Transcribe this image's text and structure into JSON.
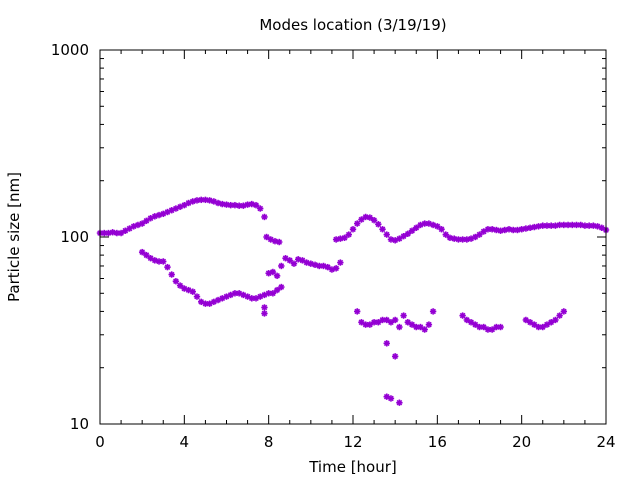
{
  "chart_data": {
    "type": "scatter",
    "title": "Modes location (3/19/19)",
    "xlabel": "Time [hour]",
    "ylabel": "Particle size [nm]",
    "xlim": [
      0,
      24
    ],
    "ylim": [
      10,
      1000
    ],
    "y_scale": "log",
    "grid": false,
    "legend": "none",
    "marker": "asterisk",
    "x_ticks": [
      0,
      4,
      8,
      12,
      16,
      20,
      24
    ],
    "y_ticks": [
      10,
      100,
      1000
    ],
    "x_tick_labels": [
      "0",
      "4",
      "8",
      "12",
      "16",
      "20",
      "24"
    ],
    "y_tick_labels": [
      "10",
      "100",
      "1000"
    ],
    "colors": {
      "series": "#9400d3",
      "axes": "#000000",
      "background": "#ffffff"
    },
    "series": [
      {
        "values": [
          [
            0.0,
            105
          ],
          [
            0.2,
            105
          ],
          [
            0.4,
            105
          ],
          [
            0.6,
            106
          ],
          [
            0.8,
            105
          ],
          [
            1.0,
            105
          ],
          [
            1.2,
            108
          ],
          [
            1.4,
            111
          ],
          [
            1.6,
            114
          ],
          [
            1.8,
            116
          ],
          [
            2.0,
            118
          ],
          [
            2.2,
            122
          ],
          [
            2.4,
            126
          ],
          [
            2.6,
            129
          ],
          [
            2.8,
            131
          ],
          [
            3.0,
            133
          ],
          [
            3.2,
            136
          ],
          [
            3.4,
            139
          ],
          [
            3.6,
            142
          ],
          [
            3.8,
            145
          ],
          [
            4.0,
            148
          ],
          [
            4.2,
            152
          ],
          [
            4.4,
            155
          ],
          [
            4.6,
            157
          ],
          [
            4.8,
            158
          ],
          [
            5.0,
            158
          ],
          [
            5.2,
            157
          ],
          [
            5.4,
            155
          ],
          [
            5.6,
            152
          ],
          [
            5.8,
            150
          ],
          [
            6.0,
            149
          ],
          [
            6.2,
            148
          ],
          [
            6.4,
            148
          ],
          [
            6.6,
            147
          ],
          [
            6.8,
            147
          ],
          [
            7.0,
            149
          ],
          [
            7.2,
            150
          ],
          [
            7.4,
            148
          ],
          [
            7.6,
            142
          ],
          [
            7.8,
            128
          ],
          [
            7.9,
            100
          ],
          [
            8.1,
            97
          ],
          [
            8.3,
            95
          ],
          [
            8.5,
            94
          ],
          [
            11.2,
            97
          ],
          [
            11.4,
            98
          ],
          [
            11.6,
            99
          ],
          [
            11.8,
            103
          ],
          [
            12.0,
            110
          ],
          [
            12.2,
            118
          ],
          [
            12.4,
            124
          ],
          [
            12.6,
            128
          ],
          [
            12.8,
            127
          ],
          [
            13.0,
            123
          ],
          [
            13.2,
            117
          ],
          [
            13.4,
            110
          ],
          [
            13.6,
            103
          ],
          [
            13.8,
            97
          ],
          [
            14.0,
            96
          ],
          [
            14.2,
            98
          ],
          [
            14.4,
            101
          ],
          [
            14.6,
            104
          ],
          [
            14.8,
            108
          ],
          [
            15.0,
            112
          ],
          [
            15.2,
            116
          ],
          [
            15.4,
            118
          ],
          [
            15.6,
            118
          ],
          [
            15.8,
            116
          ],
          [
            16.0,
            114
          ],
          [
            16.2,
            110
          ],
          [
            16.4,
            103
          ],
          [
            16.6,
            99
          ],
          [
            16.8,
            98
          ],
          [
            17.0,
            97
          ],
          [
            17.2,
            97
          ],
          [
            17.4,
            97
          ],
          [
            17.6,
            98
          ],
          [
            17.8,
            100
          ],
          [
            18.0,
            103
          ],
          [
            18.2,
            107
          ],
          [
            18.4,
            110
          ],
          [
            18.6,
            110
          ],
          [
            18.8,
            109
          ],
          [
            19.0,
            108
          ],
          [
            19.2,
            109
          ],
          [
            19.4,
            110
          ],
          [
            19.6,
            109
          ],
          [
            19.8,
            109
          ],
          [
            20.0,
            110
          ],
          [
            20.2,
            111
          ],
          [
            20.4,
            112
          ],
          [
            20.6,
            113
          ],
          [
            20.8,
            114
          ],
          [
            21.0,
            115
          ],
          [
            21.2,
            115
          ],
          [
            21.4,
            115
          ],
          [
            21.6,
            115
          ],
          [
            21.8,
            116
          ],
          [
            22.0,
            116
          ],
          [
            22.2,
            116
          ],
          [
            22.4,
            116
          ],
          [
            22.6,
            116
          ],
          [
            22.8,
            116
          ],
          [
            23.0,
            115
          ],
          [
            23.2,
            115
          ],
          [
            23.4,
            115
          ],
          [
            23.6,
            114
          ],
          [
            23.8,
            112
          ],
          [
            24.0,
            109
          ],
          [
            2.0,
            83
          ],
          [
            2.2,
            80
          ],
          [
            2.4,
            77
          ],
          [
            2.6,
            75
          ],
          [
            2.8,
            74
          ],
          [
            3.0,
            74
          ],
          [
            3.2,
            69
          ],
          [
            3.4,
            63
          ],
          [
            3.6,
            58
          ],
          [
            3.8,
            55
          ],
          [
            4.0,
            53
          ],
          [
            4.2,
            52
          ],
          [
            4.4,
            51
          ],
          [
            4.6,
            48
          ],
          [
            4.8,
            45
          ],
          [
            5.0,
            44
          ],
          [
            5.2,
            44
          ],
          [
            5.4,
            45
          ],
          [
            5.6,
            46
          ],
          [
            5.8,
            47
          ],
          [
            6.0,
            48
          ],
          [
            6.2,
            49
          ],
          [
            6.4,
            50
          ],
          [
            6.6,
            50
          ],
          [
            6.8,
            49
          ],
          [
            7.0,
            48
          ],
          [
            7.2,
            47
          ],
          [
            7.4,
            47
          ],
          [
            7.6,
            48
          ],
          [
            7.8,
            49
          ],
          [
            8.0,
            50
          ],
          [
            8.2,
            50
          ],
          [
            8.4,
            52
          ],
          [
            8.6,
            54
          ],
          [
            7.8,
            39
          ],
          [
            7.8,
            42
          ],
          [
            8.0,
            64
          ],
          [
            8.2,
            65
          ],
          [
            8.4,
            62
          ],
          [
            8.6,
            70
          ],
          [
            8.8,
            77
          ],
          [
            9.0,
            75
          ],
          [
            9.2,
            72
          ],
          [
            9.4,
            76
          ],
          [
            9.6,
            75
          ],
          [
            9.8,
            73
          ],
          [
            10.0,
            72
          ],
          [
            10.2,
            71
          ],
          [
            10.4,
            70
          ],
          [
            10.6,
            70
          ],
          [
            10.8,
            69
          ],
          [
            11.0,
            67
          ],
          [
            11.2,
            68
          ],
          [
            11.4,
            73
          ],
          [
            12.2,
            40
          ],
          [
            12.4,
            35
          ],
          [
            12.6,
            34
          ],
          [
            12.8,
            34
          ],
          [
            13.0,
            35
          ],
          [
            13.2,
            35
          ],
          [
            13.4,
            36
          ],
          [
            13.6,
            36
          ],
          [
            13.8,
            35
          ],
          [
            14.0,
            36
          ],
          [
            14.2,
            33
          ],
          [
            14.4,
            38
          ],
          [
            14.6,
            35
          ],
          [
            14.8,
            34
          ],
          [
            15.0,
            33
          ],
          [
            15.2,
            33
          ],
          [
            15.4,
            32
          ],
          [
            15.6,
            34
          ],
          [
            15.8,
            40
          ],
          [
            13.6,
            27
          ],
          [
            14.0,
            23
          ],
          [
            13.6,
            14
          ],
          [
            13.8,
            13.7
          ],
          [
            14.2,
            13
          ],
          [
            17.2,
            38
          ],
          [
            17.4,
            36
          ],
          [
            17.6,
            35
          ],
          [
            17.8,
            34
          ],
          [
            18.0,
            33
          ],
          [
            18.2,
            33
          ],
          [
            18.4,
            32
          ],
          [
            18.6,
            32
          ],
          [
            18.8,
            33
          ],
          [
            19.0,
            33
          ],
          [
            20.2,
            36
          ],
          [
            20.4,
            35
          ],
          [
            20.6,
            34
          ],
          [
            20.8,
            33
          ],
          [
            21.0,
            33
          ],
          [
            21.2,
            34
          ],
          [
            21.4,
            35
          ],
          [
            21.6,
            36
          ],
          [
            21.8,
            38
          ],
          [
            22.0,
            40
          ]
        ]
      }
    ]
  }
}
